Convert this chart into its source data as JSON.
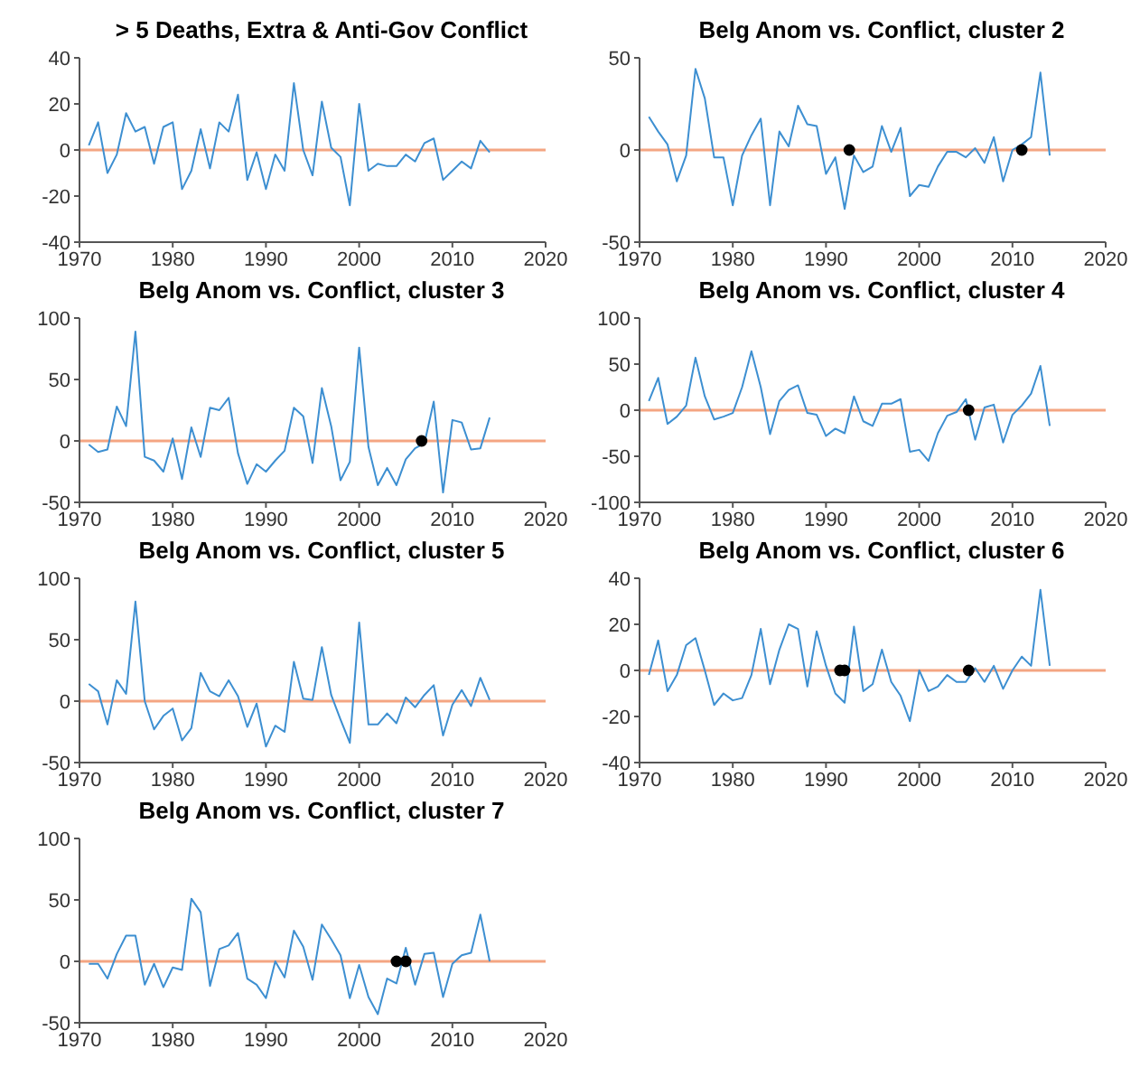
{
  "chart_data": [
    {
      "type": "line",
      "title": "> 5 Deaths, Extra & Anti-Gov Conflict",
      "x": [
        1971,
        1972,
        1973,
        1974,
        1975,
        1976,
        1977,
        1978,
        1979,
        1980,
        1981,
        1982,
        1983,
        1984,
        1985,
        1986,
        1987,
        1988,
        1989,
        1990,
        1991,
        1992,
        1993,
        1994,
        1995,
        1996,
        1997,
        1998,
        1999,
        2000,
        2001,
        2002,
        2003,
        2004,
        2005,
        2006,
        2007,
        2008,
        2009,
        2010,
        2011,
        2012,
        2013,
        2014
      ],
      "xlim": [
        1970,
        2020
      ],
      "xticks": [
        1970,
        1980,
        1990,
        2000,
        2010,
        2020
      ],
      "ylim": [
        -40,
        40
      ],
      "yticks": [
        -40,
        -20,
        0,
        20,
        40
      ],
      "ref_lines": [
        {
          "axis": "y",
          "value": 0,
          "color": "#f4a582"
        }
      ],
      "series": [
        {
          "color": "#3d8fd1",
          "values": [
            2,
            12,
            -10,
            -2,
            16,
            8,
            10,
            -6,
            10,
            12,
            -17,
            -9,
            9,
            -8,
            12,
            8,
            24,
            -13,
            -1,
            -17,
            -2,
            -9,
            29,
            0,
            -11,
            21,
            1,
            -3,
            -24,
            20,
            -9,
            -6,
            -7,
            -7,
            -2,
            -5,
            3,
            5,
            -13,
            -9,
            -5,
            -8,
            4,
            -1
          ]
        }
      ]
    },
    {
      "type": "line",
      "title": "Belg Anom vs. Conflict, cluster 2",
      "x": [
        1971,
        1972,
        1973,
        1974,
        1975,
        1976,
        1977,
        1978,
        1979,
        1980,
        1981,
        1982,
        1983,
        1984,
        1985,
        1986,
        1987,
        1988,
        1989,
        1990,
        1991,
        1992,
        1993,
        1994,
        1995,
        1996,
        1997,
        1998,
        1999,
        2000,
        2001,
        2002,
        2003,
        2004,
        2005,
        2006,
        2007,
        2008,
        2009,
        2010,
        2011,
        2012,
        2013,
        2014
      ],
      "xlim": [
        1970,
        2020
      ],
      "xticks": [
        1970,
        1980,
        1990,
        2000,
        2010,
        2020
      ],
      "ylim": [
        -50,
        50
      ],
      "yticks": [
        -50,
        0,
        50
      ],
      "ref_lines": [
        {
          "axis": "y",
          "value": 0,
          "color": "#f4a582"
        }
      ],
      "series": [
        {
          "color": "#3d8fd1",
          "values": [
            18,
            10,
            3,
            -17,
            -3,
            44,
            28,
            -4,
            -4,
            -30,
            -3,
            8,
            17,
            -30,
            10,
            2,
            24,
            14,
            13,
            -13,
            -4,
            -32,
            -3,
            -12,
            -9,
            13,
            -1,
            12,
            -25,
            -19,
            -20,
            -9,
            -1,
            -1,
            -4,
            1,
            -7,
            7,
            -17,
            0,
            3,
            7,
            42,
            -3
          ]
        },
        {
          "type": "scatter",
          "color": "#000000",
          "marker": "circle",
          "x": [
            1992.5,
            2011
          ],
          "values": [
            0,
            0
          ]
        }
      ]
    },
    {
      "type": "line",
      "title": "Belg Anom vs. Conflict, cluster 3",
      "x": [
        1971,
        1972,
        1973,
        1974,
        1975,
        1976,
        1977,
        1978,
        1979,
        1980,
        1981,
        1982,
        1983,
        1984,
        1985,
        1986,
        1987,
        1988,
        1989,
        1990,
        1991,
        1992,
        1993,
        1994,
        1995,
        1996,
        1997,
        1998,
        1999,
        2000,
        2001,
        2002,
        2003,
        2004,
        2005,
        2006,
        2007,
        2008,
        2009,
        2010,
        2011,
        2012,
        2013,
        2014
      ],
      "xlim": [
        1970,
        2020
      ],
      "xticks": [
        1970,
        1980,
        1990,
        2000,
        2010,
        2020
      ],
      "ylim": [
        -50,
        100
      ],
      "yticks": [
        -50,
        0,
        50,
        100
      ],
      "ref_lines": [
        {
          "axis": "y",
          "value": 0,
          "color": "#f4a582"
        }
      ],
      "series": [
        {
          "color": "#3d8fd1",
          "values": [
            -3,
            -9,
            -7,
            28,
            12,
            89,
            -13,
            -16,
            -25,
            2,
            -31,
            11,
            -13,
            27,
            25,
            35,
            -10,
            -35,
            -19,
            -25,
            -16,
            -8,
            27,
            20,
            -18,
            43,
            12,
            -32,
            -17,
            76,
            -5,
            -36,
            -22,
            -36,
            -15,
            -6,
            -2,
            32,
            -42,
            17,
            15,
            -7,
            -6,
            19
          ]
        },
        {
          "type": "scatter",
          "color": "#000000",
          "marker": "circle",
          "x": [
            2006.7
          ],
          "values": [
            0
          ]
        }
      ]
    },
    {
      "type": "line",
      "title": "Belg Anom vs. Conflict, cluster 4",
      "x": [
        1971,
        1972,
        1973,
        1974,
        1975,
        1976,
        1977,
        1978,
        1979,
        1980,
        1981,
        1982,
        1983,
        1984,
        1985,
        1986,
        1987,
        1988,
        1989,
        1990,
        1991,
        1992,
        1993,
        1994,
        1995,
        1996,
        1997,
        1998,
        1999,
        2000,
        2001,
        2002,
        2003,
        2004,
        2005,
        2006,
        2007,
        2008,
        2009,
        2010,
        2011,
        2012,
        2013,
        2014
      ],
      "xlim": [
        1970,
        2020
      ],
      "xticks": [
        1970,
        1980,
        1990,
        2000,
        2010,
        2020
      ],
      "ylim": [
        -100,
        100
      ],
      "yticks": [
        -100,
        -50,
        0,
        50,
        100
      ],
      "ref_lines": [
        {
          "axis": "y",
          "value": 0,
          "color": "#f4a582"
        }
      ],
      "series": [
        {
          "color": "#3d8fd1",
          "values": [
            10,
            35,
            -15,
            -7,
            5,
            57,
            15,
            -10,
            -7,
            -3,
            25,
            64,
            25,
            -26,
            10,
            22,
            27,
            -3,
            -5,
            -28,
            -20,
            -25,
            15,
            -12,
            -17,
            7,
            7,
            12,
            -45,
            -43,
            -55,
            -25,
            -6,
            -2,
            12,
            -32,
            3,
            6,
            -35,
            -5,
            5,
            18,
            48,
            -17
          ]
        },
        {
          "type": "scatter",
          "color": "#000000",
          "marker": "circle",
          "x": [
            2005.3
          ],
          "values": [
            0
          ]
        }
      ]
    },
    {
      "type": "line",
      "title": "Belg Anom vs. Conflict, cluster 5",
      "x": [
        1971,
        1972,
        1973,
        1974,
        1975,
        1976,
        1977,
        1978,
        1979,
        1980,
        1981,
        1982,
        1983,
        1984,
        1985,
        1986,
        1987,
        1988,
        1989,
        1990,
        1991,
        1992,
        1993,
        1994,
        1995,
        1996,
        1997,
        1998,
        1999,
        2000,
        2001,
        2002,
        2003,
        2004,
        2005,
        2006,
        2007,
        2008,
        2009,
        2010,
        2011,
        2012,
        2013,
        2014
      ],
      "xlim": [
        1970,
        2020
      ],
      "xticks": [
        1970,
        1980,
        1990,
        2000,
        2010,
        2020
      ],
      "ylim": [
        -50,
        100
      ],
      "yticks": [
        -50,
        0,
        50,
        100
      ],
      "ref_lines": [
        {
          "axis": "y",
          "value": 0,
          "color": "#f4a582"
        }
      ],
      "series": [
        {
          "color": "#3d8fd1",
          "values": [
            14,
            8,
            -19,
            17,
            6,
            81,
            0,
            -23,
            -12,
            -6,
            -32,
            -22,
            23,
            8,
            4,
            17,
            4,
            -21,
            -2,
            -37,
            -20,
            -25,
            32,
            2,
            1,
            44,
            5,
            -15,
            -34,
            64,
            -19,
            -19,
            -10,
            -18,
            3,
            -5,
            5,
            13,
            -28,
            -3,
            9,
            -4,
            19,
            1
          ]
        }
      ]
    },
    {
      "type": "line",
      "title": "Belg Anom vs. Conflict, cluster 6",
      "x": [
        1971,
        1972,
        1973,
        1974,
        1975,
        1976,
        1977,
        1978,
        1979,
        1980,
        1981,
        1982,
        1983,
        1984,
        1985,
        1986,
        1987,
        1988,
        1989,
        1990,
        1991,
        1992,
        1993,
        1994,
        1995,
        1996,
        1997,
        1998,
        1999,
        2000,
        2001,
        2002,
        2003,
        2004,
        2005,
        2006,
        2007,
        2008,
        2009,
        2010,
        2011,
        2012,
        2013,
        2014
      ],
      "xlim": [
        1970,
        2020
      ],
      "xticks": [
        1970,
        1980,
        1990,
        2000,
        2010,
        2020
      ],
      "ylim": [
        -40,
        40
      ],
      "yticks": [
        -40,
        -20,
        0,
        20,
        40
      ],
      "ref_lines": [
        {
          "axis": "y",
          "value": 0,
          "color": "#f4a582"
        }
      ],
      "series": [
        {
          "color": "#3d8fd1",
          "values": [
            -2,
            13,
            -9,
            -2,
            11,
            14,
            0,
            -15,
            -10,
            -13,
            -12,
            -2,
            18,
            -6,
            9,
            20,
            18,
            -7,
            17,
            2,
            -10,
            -14,
            19,
            -9,
            -6,
            9,
            -5,
            -11,
            -22,
            0,
            -9,
            -7,
            -2,
            -5,
            -5,
            1,
            -5,
            2,
            -8,
            0,
            6,
            2,
            35,
            2
          ]
        },
        {
          "type": "scatter",
          "color": "#000000",
          "marker": "circle",
          "x": [
            1991.5,
            1992,
            2005.3
          ],
          "values": [
            0,
            0,
            0
          ]
        }
      ]
    },
    {
      "type": "line",
      "title": "Belg Anom vs. Conflict, cluster 7",
      "x": [
        1971,
        1972,
        1973,
        1974,
        1975,
        1976,
        1977,
        1978,
        1979,
        1980,
        1981,
        1982,
        1983,
        1984,
        1985,
        1986,
        1987,
        1988,
        1989,
        1990,
        1991,
        1992,
        1993,
        1994,
        1995,
        1996,
        1997,
        1998,
        1999,
        2000,
        2001,
        2002,
        2003,
        2004,
        2005,
        2006,
        2007,
        2008,
        2009,
        2010,
        2011,
        2012,
        2013,
        2014
      ],
      "xlim": [
        1970,
        2020
      ],
      "xticks": [
        1970,
        1980,
        1990,
        2000,
        2010,
        2020
      ],
      "ylim": [
        -50,
        100
      ],
      "yticks": [
        -50,
        0,
        50,
        100
      ],
      "ref_lines": [
        {
          "axis": "y",
          "value": 0,
          "color": "#f4a582"
        }
      ],
      "series": [
        {
          "color": "#3d8fd1",
          "values": [
            -2,
            -2,
            -14,
            6,
            21,
            21,
            -19,
            -2,
            -21,
            -5,
            -7,
            51,
            40,
            -20,
            10,
            13,
            23,
            -14,
            -19,
            -30,
            0,
            -13,
            25,
            12,
            -15,
            30,
            18,
            5,
            -30,
            -3,
            -29,
            -43,
            -14,
            -18,
            11,
            -19,
            6,
            7,
            -29,
            -2,
            5,
            7,
            38,
            0
          ]
        },
        {
          "type": "scatter",
          "color": "#000000",
          "marker": "circle",
          "x": [
            2004,
            2005
          ],
          "values": [
            0,
            0
          ]
        }
      ]
    }
  ]
}
